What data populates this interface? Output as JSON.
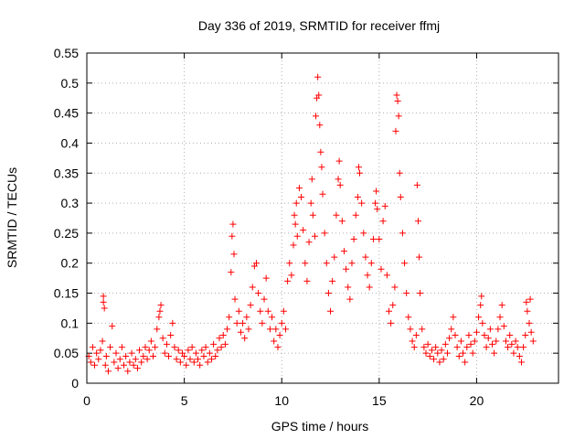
{
  "chart_data": {
    "type": "scatter",
    "title": "Day 336 of 2019, SRMTID for receiver ffmj",
    "xlabel": "GPS time / hours",
    "ylabel": "SRMTID / TECUs",
    "xlim": [
      0,
      24.2
    ],
    "ylim": [
      0,
      0.55
    ],
    "xticks": [
      0,
      5,
      10,
      15,
      20
    ],
    "xtick_labels": [
      "0",
      "5",
      "10",
      "15",
      "20"
    ],
    "yticks": [
      0,
      0.05,
      0.1,
      0.15,
      0.2,
      0.25,
      0.3,
      0.35,
      0.4,
      0.45,
      0.5,
      0.55
    ],
    "ytick_labels": [
      "0",
      "0.05",
      "0.1",
      "0.15",
      "0.2",
      "0.25",
      "0.3",
      "0.35",
      "0.4",
      "0.45",
      "0.5",
      "0.55"
    ],
    "grid": true,
    "marker": "+",
    "color": "#ff0000",
    "series": [
      {
        "name": "SRMTID",
        "points": [
          [
            0.1,
            0.045
          ],
          [
            0.2,
            0.035
          ],
          [
            0.3,
            0.06
          ],
          [
            0.4,
            0.03
          ],
          [
            0.5,
            0.05
          ],
          [
            0.6,
            0.04
          ],
          [
            0.7,
            0.055
          ],
          [
            0.8,
            0.07
          ],
          [
            0.85,
            0.135
          ],
          [
            0.85,
            0.145
          ],
          [
            0.9,
            0.125
          ],
          [
            0.95,
            0.03
          ],
          [
            1.0,
            0.045
          ],
          [
            1.1,
            0.02
          ],
          [
            1.2,
            0.06
          ],
          [
            1.3,
            0.095
          ],
          [
            1.4,
            0.035
          ],
          [
            1.5,
            0.05
          ],
          [
            1.6,
            0.025
          ],
          [
            1.7,
            0.04
          ],
          [
            1.8,
            0.06
          ],
          [
            1.9,
            0.03
          ],
          [
            2.0,
            0.045
          ],
          [
            2.1,
            0.02
          ],
          [
            2.2,
            0.035
          ],
          [
            2.3,
            0.05
          ],
          [
            2.4,
            0.03
          ],
          [
            2.5,
            0.04
          ],
          [
            2.6,
            0.025
          ],
          [
            2.7,
            0.055
          ],
          [
            2.8,
            0.035
          ],
          [
            2.9,
            0.045
          ],
          [
            3.0,
            0.06
          ],
          [
            3.1,
            0.04
          ],
          [
            3.2,
            0.055
          ],
          [
            3.3,
            0.07
          ],
          [
            3.4,
            0.045
          ],
          [
            3.5,
            0.06
          ],
          [
            3.6,
            0.09
          ],
          [
            3.7,
            0.11
          ],
          [
            3.8,
            0.13
          ],
          [
            3.75,
            0.12
          ],
          [
            3.9,
            0.075
          ],
          [
            4.0,
            0.05
          ],
          [
            4.1,
            0.065
          ],
          [
            4.2,
            0.045
          ],
          [
            4.3,
            0.08
          ],
          [
            4.4,
            0.1
          ],
          [
            4.5,
            0.06
          ],
          [
            4.6,
            0.04
          ],
          [
            4.7,
            0.055
          ],
          [
            4.8,
            0.035
          ],
          [
            4.9,
            0.05
          ],
          [
            5.0,
            0.045
          ],
          [
            5.1,
            0.03
          ],
          [
            5.2,
            0.055
          ],
          [
            5.3,
            0.04
          ],
          [
            5.4,
            0.06
          ],
          [
            5.5,
            0.035
          ],
          [
            5.6,
            0.05
          ],
          [
            5.7,
            0.04
          ],
          [
            5.8,
            0.03
          ],
          [
            5.9,
            0.055
          ],
          [
            6.0,
            0.045
          ],
          [
            6.1,
            0.06
          ],
          [
            6.2,
            0.035
          ],
          [
            6.3,
            0.05
          ],
          [
            6.4,
            0.04
          ],
          [
            6.5,
            0.065
          ],
          [
            6.6,
            0.045
          ],
          [
            6.7,
            0.055
          ],
          [
            6.8,
            0.075
          ],
          [
            6.9,
            0.06
          ],
          [
            7.0,
            0.08
          ],
          [
            7.1,
            0.065
          ],
          [
            7.2,
            0.09
          ],
          [
            7.3,
            0.11
          ],
          [
            7.4,
            0.185
          ],
          [
            7.45,
            0.245
          ],
          [
            7.5,
            0.265
          ],
          [
            7.55,
            0.215
          ],
          [
            7.6,
            0.14
          ],
          [
            7.7,
            0.1
          ],
          [
            7.8,
            0.12
          ],
          [
            7.9,
            0.085
          ],
          [
            8.0,
            0.1
          ],
          [
            8.1,
            0.075
          ],
          [
            8.2,
            0.11
          ],
          [
            8.3,
            0.09
          ],
          [
            8.4,
            0.13
          ],
          [
            8.5,
            0.16
          ],
          [
            8.6,
            0.195
          ],
          [
            8.7,
            0.2
          ],
          [
            8.8,
            0.15
          ],
          [
            8.9,
            0.12
          ],
          [
            9.0,
            0.1
          ],
          [
            9.1,
            0.14
          ],
          [
            9.2,
            0.175
          ],
          [
            9.3,
            0.12
          ],
          [
            9.4,
            0.09
          ],
          [
            9.5,
            0.11
          ],
          [
            9.6,
            0.07
          ],
          [
            9.7,
            0.09
          ],
          [
            9.8,
            0.06
          ],
          [
            9.9,
            0.08
          ],
          [
            10.0,
            0.1
          ],
          [
            10.1,
            0.12
          ],
          [
            10.2,
            0.09
          ],
          [
            10.3,
            0.17
          ],
          [
            10.4,
            0.2
          ],
          [
            10.5,
            0.18
          ],
          [
            10.6,
            0.23
          ],
          [
            10.65,
            0.28
          ],
          [
            10.7,
            0.265
          ],
          [
            10.75,
            0.3
          ],
          [
            10.8,
            0.245
          ],
          [
            10.9,
            0.325
          ],
          [
            11.0,
            0.31
          ],
          [
            11.1,
            0.255
          ],
          [
            11.2,
            0.2
          ],
          [
            11.3,
            0.17
          ],
          [
            11.4,
            0.235
          ],
          [
            11.5,
            0.3
          ],
          [
            11.55,
            0.34
          ],
          [
            11.6,
            0.28
          ],
          [
            11.7,
            0.245
          ],
          [
            11.75,
            0.445
          ],
          [
            11.8,
            0.475
          ],
          [
            11.85,
            0.51
          ],
          [
            11.9,
            0.48
          ],
          [
            11.95,
            0.43
          ],
          [
            12.0,
            0.385
          ],
          [
            12.05,
            0.36
          ],
          [
            12.1,
            0.315
          ],
          [
            12.2,
            0.25
          ],
          [
            12.3,
            0.2
          ],
          [
            12.4,
            0.15
          ],
          [
            12.5,
            0.12
          ],
          [
            12.6,
            0.17
          ],
          [
            12.7,
            0.21
          ],
          [
            12.8,
            0.28
          ],
          [
            12.9,
            0.34
          ],
          [
            12.95,
            0.37
          ],
          [
            13.0,
            0.33
          ],
          [
            13.1,
            0.27
          ],
          [
            13.2,
            0.22
          ],
          [
            13.3,
            0.19
          ],
          [
            13.4,
            0.16
          ],
          [
            13.5,
            0.14
          ],
          [
            13.6,
            0.2
          ],
          [
            13.7,
            0.24
          ],
          [
            13.8,
            0.28
          ],
          [
            13.9,
            0.31
          ],
          [
            13.95,
            0.36
          ],
          [
            14.0,
            0.35
          ],
          [
            14.1,
            0.3
          ],
          [
            14.2,
            0.25
          ],
          [
            14.3,
            0.21
          ],
          [
            14.4,
            0.18
          ],
          [
            14.5,
            0.16
          ],
          [
            14.6,
            0.2
          ],
          [
            14.7,
            0.24
          ],
          [
            14.8,
            0.3
          ],
          [
            14.85,
            0.32
          ],
          [
            14.9,
            0.29
          ],
          [
            15.0,
            0.24
          ],
          [
            15.1,
            0.19
          ],
          [
            15.2,
            0.27
          ],
          [
            15.3,
            0.295
          ],
          [
            15.4,
            0.18
          ],
          [
            15.5,
            0.12
          ],
          [
            15.6,
            0.1
          ],
          [
            15.7,
            0.13
          ],
          [
            15.8,
            0.16
          ],
          [
            15.85,
            0.42
          ],
          [
            15.9,
            0.48
          ],
          [
            15.95,
            0.47
          ],
          [
            16.0,
            0.445
          ],
          [
            16.05,
            0.35
          ],
          [
            16.1,
            0.31
          ],
          [
            16.2,
            0.25
          ],
          [
            16.3,
            0.2
          ],
          [
            16.4,
            0.15
          ],
          [
            16.5,
            0.11
          ],
          [
            16.6,
            0.09
          ],
          [
            16.7,
            0.07
          ],
          [
            16.8,
            0.06
          ],
          [
            16.9,
            0.08
          ],
          [
            16.95,
            0.33
          ],
          [
            17.0,
            0.27
          ],
          [
            17.05,
            0.21
          ],
          [
            17.1,
            0.15
          ],
          [
            17.2,
            0.09
          ],
          [
            17.3,
            0.06
          ],
          [
            17.4,
            0.05
          ],
          [
            17.5,
            0.065
          ],
          [
            17.6,
            0.045
          ],
          [
            17.7,
            0.055
          ],
          [
            17.8,
            0.04
          ],
          [
            17.9,
            0.06
          ],
          [
            18.0,
            0.05
          ],
          [
            18.1,
            0.035
          ],
          [
            18.2,
            0.055
          ],
          [
            18.3,
            0.04
          ],
          [
            18.4,
            0.065
          ],
          [
            18.5,
            0.05
          ],
          [
            18.6,
            0.075
          ],
          [
            18.7,
            0.09
          ],
          [
            18.8,
            0.11
          ],
          [
            18.9,
            0.08
          ],
          [
            19.0,
            0.06
          ],
          [
            19.1,
            0.045
          ],
          [
            19.2,
            0.07
          ],
          [
            19.3,
            0.05
          ],
          [
            19.4,
            0.035
          ],
          [
            19.5,
            0.06
          ],
          [
            19.6,
            0.08
          ],
          [
            19.7,
            0.065
          ],
          [
            19.8,
            0.05
          ],
          [
            19.9,
            0.07
          ],
          [
            20.0,
            0.085
          ],
          [
            20.1,
            0.11
          ],
          [
            20.2,
            0.13
          ],
          [
            20.25,
            0.145
          ],
          [
            20.3,
            0.1
          ],
          [
            20.4,
            0.08
          ],
          [
            20.5,
            0.06
          ],
          [
            20.6,
            0.075
          ],
          [
            20.7,
            0.09
          ],
          [
            20.8,
            0.065
          ],
          [
            20.9,
            0.05
          ],
          [
            21.0,
            0.07
          ],
          [
            21.1,
            0.09
          ],
          [
            21.2,
            0.11
          ],
          [
            21.3,
            0.13
          ],
          [
            21.4,
            0.095
          ],
          [
            21.5,
            0.07
          ],
          [
            21.6,
            0.06
          ],
          [
            21.7,
            0.08
          ],
          [
            21.8,
            0.065
          ],
          [
            21.9,
            0.05
          ],
          [
            22.0,
            0.07
          ],
          [
            22.1,
            0.06
          ],
          [
            22.2,
            0.045
          ],
          [
            22.3,
            0.035
          ],
          [
            22.4,
            0.06
          ],
          [
            22.5,
            0.08
          ],
          [
            22.55,
            0.135
          ],
          [
            22.6,
            0.12
          ],
          [
            22.7,
            0.1
          ],
          [
            22.75,
            0.14
          ],
          [
            22.8,
            0.085
          ],
          [
            22.9,
            0.07
          ]
        ]
      }
    ]
  }
}
